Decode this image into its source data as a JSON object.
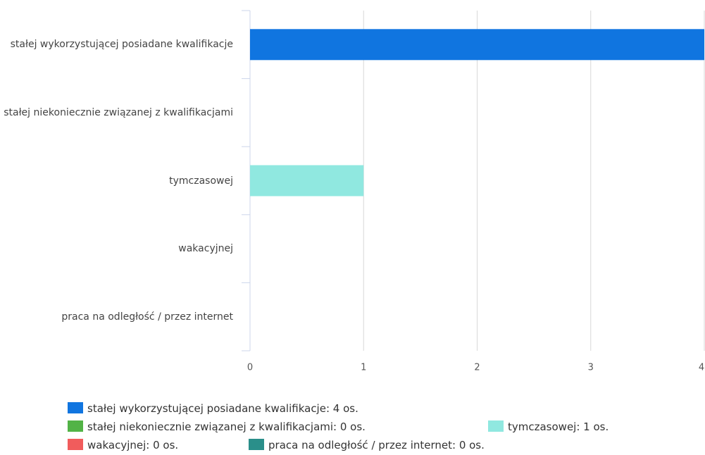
{
  "chart_data": {
    "type": "bar",
    "orientation": "horizontal",
    "categories": [
      "stałej wykorzystującej posiadane kwalifikacje",
      "stałej niekoniecznie związanej z kwalifikacjami",
      "tymczasowej",
      "wakacyjnej",
      "praca na odległość / przez internet"
    ],
    "values": [
      4,
      0,
      1,
      0,
      0
    ],
    "colors": [
      "#1075e0",
      "#52b346",
      "#90e8e0",
      "#f15c5c",
      "#2a8f8a"
    ],
    "xlim": [
      0,
      4
    ],
    "xticks": [
      0,
      1,
      2,
      3,
      4
    ],
    "grid": true,
    "legend": [
      "stałej wykorzystującej posiadane kwalifikacje: 4 os.",
      "stałej niekoniecznie związanej z kwalifikacjami: 0 os.",
      "tymczasowej: 1 os.",
      "wakacyjnej: 0 os.",
      "praca na odległość / przez internet: 0 os."
    ]
  }
}
